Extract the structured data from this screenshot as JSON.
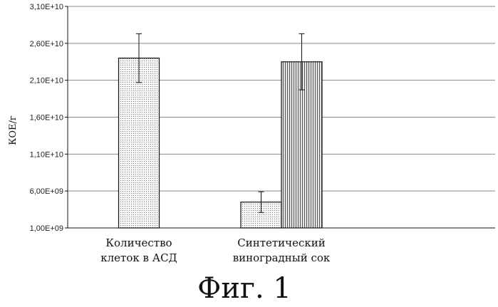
{
  "chart_data": {
    "type": "bar",
    "ylabel": "КОЕ/г",
    "ylim": [
      1000000000,
      31000000000
    ],
    "yticks": [
      1000000000,
      6000000000,
      11000000000,
      16000000000,
      21000000000,
      26000000000,
      31000000000
    ],
    "ytick_labels": [
      "1,00E+09",
      "6,00E+09",
      "1,10E+10",
      "1,60E+10",
      "2,10E+10",
      "2,60E+10",
      "3,10E+10"
    ],
    "grid": true,
    "categories": [
      [
        "Количество",
        "клеток в АСД"
      ],
      [
        "Синтетический",
        "виноградный сок"
      ]
    ],
    "series": [
      {
        "values": [
          24000000000,
          4500000000
        ],
        "errors": [
          3300000000,
          1400000000
        ]
      },
      {
        "values": [
          null,
          23500000000
        ],
        "errors": [
          null,
          3800000000
        ]
      }
    ],
    "colors": {
      "series0": "#f2f2f2",
      "series1": "#cfcfcf",
      "stroke": "#111111",
      "grid": "#888888"
    }
  },
  "caption": "Фиг. 1"
}
